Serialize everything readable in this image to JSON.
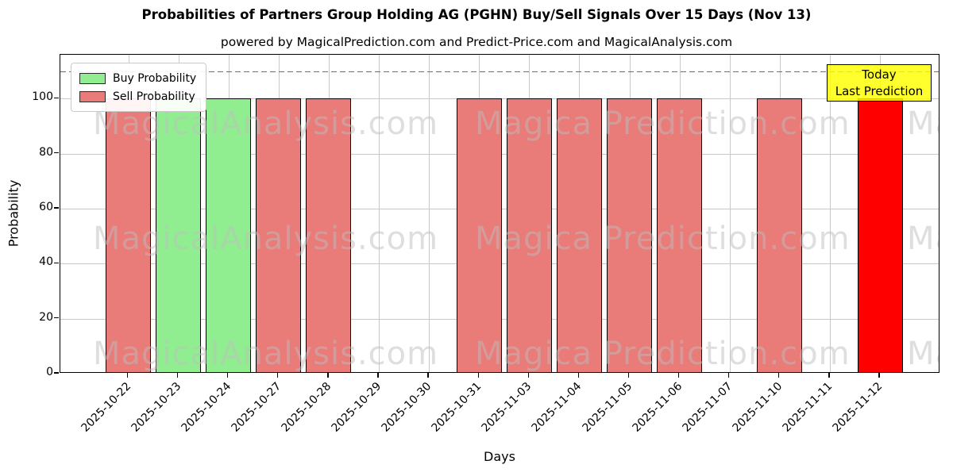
{
  "header": {
    "title": "Probabilities of Partners Group Holding AG (PGHN) Buy/Sell Signals Over 15 Days (Nov 13)",
    "subtitle": "powered by MagicalPrediction.com and Predict-Price.com and MagicalAnalysis.com"
  },
  "chart_data": {
    "type": "bar",
    "title": "Probabilities of Partners Group Holding AG (PGHN) Buy/Sell Signals Over 15 Days (Nov 13)",
    "subtitle": "powered by MagicalPrediction.com and Predict-Price.com and MagicalAnalysis.com",
    "xlabel": "Days",
    "ylabel": "Probability",
    "ylim": [
      0,
      116
    ],
    "yticks": [
      0,
      20,
      40,
      60,
      80,
      100
    ],
    "grid": true,
    "legend_position": "upper left",
    "categories": [
      "2025-10-22",
      "2025-10-23",
      "2025-10-24",
      "2025-10-27",
      "2025-10-28",
      "2025-10-29",
      "2025-10-30",
      "2025-10-31",
      "2025-11-03",
      "2025-11-04",
      "2025-11-05",
      "2025-11-06",
      "2025-11-07",
      "2025-11-10",
      "2025-11-11",
      "2025-11-12"
    ],
    "series": [
      {
        "name": "Buy Probability",
        "color": "#90ee90",
        "values": [
          0,
          100,
          100,
          0,
          0,
          0,
          0,
          0,
          0,
          0,
          0,
          0,
          0,
          0,
          0,
          0
        ]
      },
      {
        "name": "Sell Probability",
        "color": "#e97b78",
        "values": [
          100,
          0,
          0,
          100,
          100,
          0,
          0,
          100,
          100,
          100,
          100,
          100,
          0,
          100,
          0,
          0
        ]
      },
      {
        "name": "Today Last Prediction",
        "color": "#ff0000",
        "values": [
          0,
          0,
          0,
          0,
          0,
          0,
          0,
          0,
          0,
          0,
          0,
          0,
          0,
          0,
          0,
          100
        ]
      }
    ],
    "bar_edge_color": "#000000",
    "threshold_line": {
      "y": 110,
      "style": "dashed",
      "color": "#6f6f6f"
    },
    "annotation": {
      "lines": [
        "Today",
        "Last Prediction"
      ],
      "bg_color": "#ffff00",
      "border_color": "#000000"
    },
    "watermark": {
      "left_text": "MagicalAnalysis.com",
      "right_text": "Magica Prediction.com",
      "color": "#bebebe"
    },
    "legend": [
      {
        "label": "Buy Probability",
        "color": "#90ee90"
      },
      {
        "label": "Sell Probability",
        "color": "#e97b78"
      }
    ]
  }
}
